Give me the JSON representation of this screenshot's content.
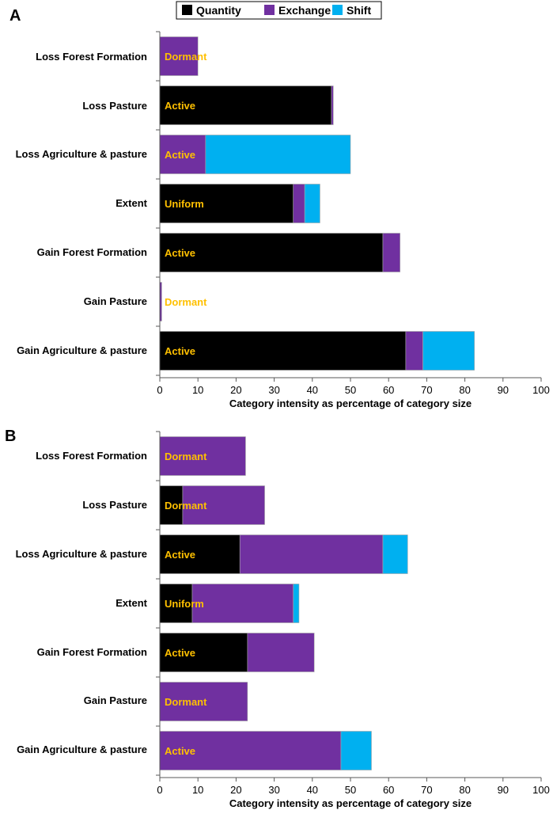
{
  "legend": {
    "items": [
      {
        "name": "Quantity",
        "color": "#000000"
      },
      {
        "name": "Exchange",
        "color": "#7030A0"
      },
      {
        "name": "Shift",
        "color": "#00B0F0"
      }
    ]
  },
  "colors": {
    "status_text": "#FFC000",
    "axis": "#595959"
  },
  "chart_data": [
    {
      "panel": "A",
      "type": "bar",
      "orientation": "horizontal",
      "stacked": true,
      "categories": [
        "Loss Forest Formation",
        "Loss Pasture",
        "Loss Agriculture & pasture",
        "Extent",
        "Gain Forest Formation",
        "Gain Pasture",
        "Gain Agriculture & pasture"
      ],
      "series": [
        {
          "name": "Quantity",
          "values": [
            0,
            45,
            0,
            35,
            58.5,
            0,
            64.5
          ]
        },
        {
          "name": "Exchange",
          "values": [
            10,
            0.5,
            12,
            3,
            4.5,
            0.5,
            4.5
          ]
        },
        {
          "name": "Shift",
          "values": [
            0,
            0,
            38,
            4,
            0,
            0,
            13.5
          ]
        }
      ],
      "status_labels": [
        "Dormant",
        "Active",
        "Active",
        "Uniform",
        "Active",
        "Dormant",
        "Active"
      ],
      "xlabel": "Category intensity as percentage of category size",
      "xlim": [
        0,
        100
      ],
      "xticks": [
        "0",
        "10",
        "20",
        "30",
        "40",
        "50",
        "60",
        "70",
        "80",
        "90",
        "100"
      ]
    },
    {
      "panel": "B",
      "type": "bar",
      "orientation": "horizontal",
      "stacked": true,
      "categories": [
        "Loss Forest Formation",
        "Loss Pasture",
        "Loss Agriculture & pasture",
        "Extent",
        "Gain Forest Formation",
        "Gain Pasture",
        "Gain Agriculture & pasture"
      ],
      "series": [
        {
          "name": "Quantity",
          "values": [
            0,
            6,
            21,
            8.5,
            23,
            0,
            0
          ]
        },
        {
          "name": "Exchange",
          "values": [
            22.5,
            21.5,
            37.5,
            26.5,
            17.5,
            23,
            47.5
          ]
        },
        {
          "name": "Shift",
          "values": [
            0,
            0,
            6.5,
            1.5,
            0,
            0,
            8
          ]
        }
      ],
      "status_labels": [
        "Dormant",
        "Dormant",
        "Active",
        "Uniform",
        "Active",
        "Dormant",
        "Active"
      ],
      "xlabel": "Category intensity as percentage of category size",
      "xlim": [
        0,
        100
      ],
      "xticks": [
        "0",
        "10",
        "20",
        "30",
        "40",
        "50",
        "60",
        "70",
        "80",
        "90",
        "100"
      ]
    }
  ]
}
